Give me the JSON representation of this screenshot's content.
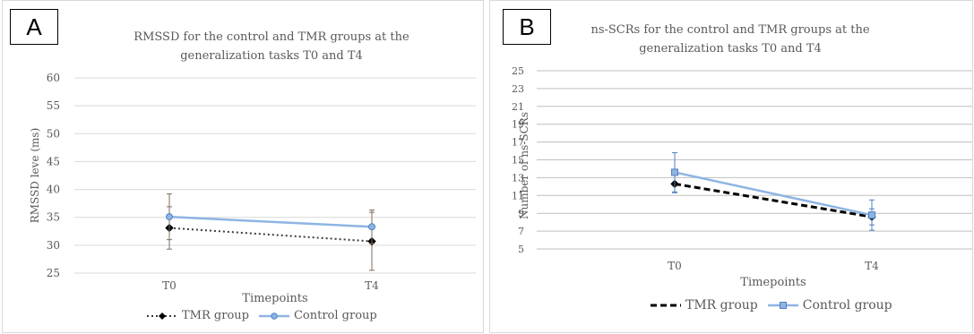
{
  "panels": [
    {
      "label": "A",
      "title_line1": "RMSSD for the control and TMR groups at the",
      "title_line2": "generalization tasks T0 and T4",
      "legend": {
        "tmr": "TMR group",
        "control": "Control group"
      }
    },
    {
      "label": "B",
      "title_line1": "ns-SCRs for the control and TMR groups at the",
      "title_line2": "generalization tasks T0 and T4",
      "legend": {
        "tmr": "TMR group",
        "control": "Control group"
      }
    }
  ],
  "colors": {
    "control": "#8eb4e3",
    "tmr_a": "#3b3b3b",
    "tmr_b": "#000000",
    "axis_text": "#595959",
    "grid_a": "#d9d9d9",
    "grid_b": "#bfbfbf",
    "errorbar_a": "#7f6f5f"
  },
  "chart_data": [
    {
      "type": "line",
      "title": "RMSSD for the control and TMR groups at the generalization tasks T0 and T4",
      "xlabel": "Timepoints",
      "ylabel": "RMSSD leve (ms)",
      "categories": [
        "T0",
        "T4"
      ],
      "ylim": [
        25,
        60
      ],
      "yticks": [
        25,
        30,
        35,
        40,
        45,
        50,
        55,
        60
      ],
      "grid": true,
      "legend_position": "bottom",
      "series": [
        {
          "name": "TMR group",
          "values": [
            33.1,
            30.7
          ],
          "error": [
            3.8,
            5.2
          ],
          "line_style": "dotted",
          "marker": "diamond"
        },
        {
          "name": "Control group",
          "values": [
            35.1,
            33.3
          ],
          "error": [
            4.1,
            3.0
          ],
          "line_style": "solid",
          "marker": "circle"
        }
      ]
    },
    {
      "type": "line",
      "title": "ns-SCRs for the control and TMR groups at the generalization tasks T0 and T4",
      "xlabel": "Timepoints",
      "ylabel": "Number of ns-SCRs",
      "categories": [
        "T0",
        "T4"
      ],
      "ylim": [
        5,
        25
      ],
      "yticks": [
        5,
        7,
        9,
        11,
        13,
        15,
        17,
        19,
        21,
        23,
        25
      ],
      "grid": true,
      "legend_position": "bottom",
      "series": [
        {
          "name": "TMR group",
          "values": [
            12.3,
            8.6
          ],
          "error": [
            1.0,
            0.9
          ],
          "line_style": "dashed",
          "marker": "diamond"
        },
        {
          "name": "Control group",
          "values": [
            13.6,
            8.8
          ],
          "error": [
            2.2,
            1.7
          ],
          "line_style": "solid",
          "marker": "square"
        }
      ]
    }
  ]
}
